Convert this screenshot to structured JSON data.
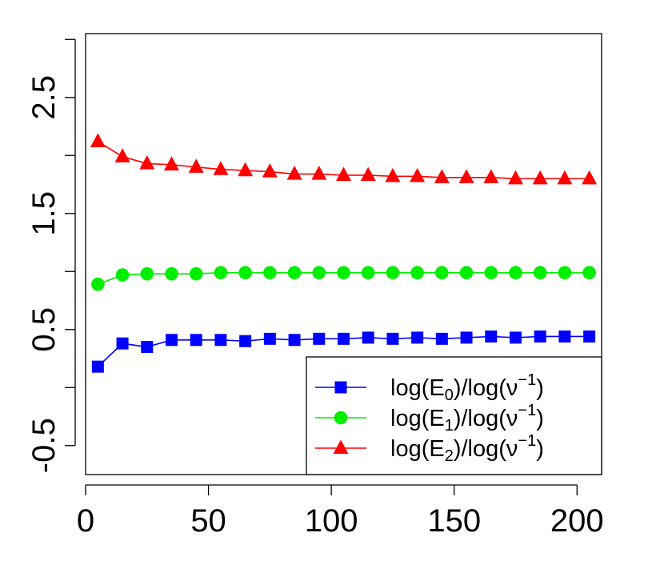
{
  "chart_data": {
    "type": "line",
    "title": "",
    "xlabel": "",
    "ylabel": "",
    "xlim": [
      0,
      210
    ],
    "ylim": [
      -0.75,
      3.05
    ],
    "x_ticks": [
      0,
      50,
      100,
      150,
      200
    ],
    "x_tick_labels": [
      "0",
      "50",
      "100",
      "150",
      "200"
    ],
    "y_ticks": [
      -0.5,
      0,
      0.5,
      1,
      1.5,
      2,
      2.5,
      3
    ],
    "y_tick_labels": [
      {
        "value": -0.5,
        "label": "-0.5"
      },
      {
        "value": 0.5,
        "label": "0.5"
      },
      {
        "value": 1.5,
        "label": "1.5"
      },
      {
        "value": 2.5,
        "label": "2.5"
      }
    ],
    "grid": false,
    "legend_position": "bottom-right",
    "x": [
      5,
      15,
      25,
      35,
      45,
      55,
      65,
      75,
      85,
      95,
      105,
      115,
      125,
      135,
      145,
      155,
      165,
      175,
      185,
      195,
      205
    ],
    "series": [
      {
        "legend_base": "log(E",
        "legend_sub": "0",
        "legend_mid": ")/log(ν",
        "legend_sup": "−1",
        "legend_end": ")",
        "color": "#0000ff",
        "marker": "square",
        "values": [
          0.18,
          0.38,
          0.35,
          0.41,
          0.41,
          0.41,
          0.4,
          0.42,
          0.41,
          0.42,
          0.42,
          0.43,
          0.42,
          0.43,
          0.42,
          0.43,
          0.44,
          0.43,
          0.44,
          0.44,
          0.44
        ]
      },
      {
        "legend_base": "log(E",
        "legend_sub": "1",
        "legend_mid": ")/log(ν",
        "legend_sup": "−1",
        "legend_end": ")",
        "color": "#00ee00",
        "marker": "circle",
        "values": [
          0.89,
          0.97,
          0.98,
          0.98,
          0.98,
          0.99,
          0.99,
          0.99,
          0.99,
          0.99,
          0.99,
          0.99,
          0.99,
          0.99,
          0.99,
          0.99,
          0.99,
          0.99,
          0.99,
          0.99,
          0.99
        ]
      },
      {
        "legend_base": "log(E",
        "legend_sub": "2",
        "legend_mid": ")/log(ν",
        "legend_sup": "−1",
        "legend_end": ")",
        "color": "#ff0000",
        "marker": "triangle",
        "values": [
          2.12,
          1.99,
          1.93,
          1.92,
          1.9,
          1.88,
          1.87,
          1.86,
          1.84,
          1.84,
          1.83,
          1.83,
          1.82,
          1.82,
          1.81,
          1.81,
          1.81,
          1.8,
          1.8,
          1.8,
          1.8
        ]
      }
    ]
  }
}
